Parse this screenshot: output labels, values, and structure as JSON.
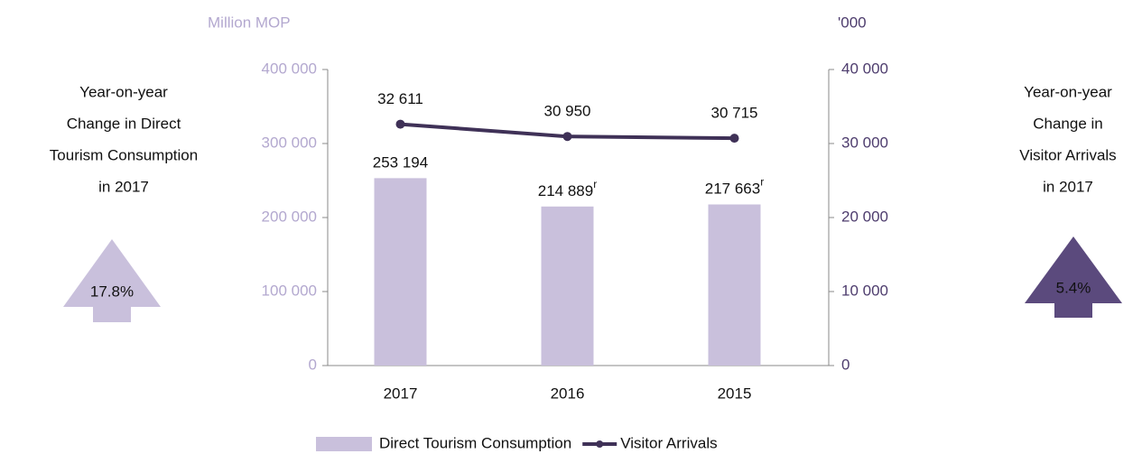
{
  "chart_data": {
    "type": "combo",
    "categories": [
      "2017",
      "2016",
      "2015"
    ],
    "y_label": "Million MOP",
    "y2_label": "'000",
    "ylim": [
      0,
      400000
    ],
    "yticks": [
      0,
      {
        "value": 100000,
        "label": "100 000"
      },
      {
        "value": 200000,
        "label": "200 000"
      },
      {
        "value": 300000,
        "label": "300 000"
      },
      {
        "value": 400000,
        "label": "400 000"
      }
    ],
    "y2lim": [
      0,
      40000
    ],
    "y2ticks": [
      0,
      {
        "value": 10000,
        "label": "10 000"
      },
      {
        "value": 20000,
        "label": "20 000"
      },
      {
        "value": 30000,
        "label": "30 000"
      },
      {
        "value": 40000,
        "label": "40 000"
      }
    ],
    "series": [
      {
        "name": "Direct Tourism Consumption",
        "type": "bar",
        "color": "#c9c0dc",
        "values": [
          253194,
          214889,
          217663
        ],
        "value_labels": [
          "253 194",
          "214 889",
          "217 663"
        ],
        "value_label_notes": [
          null,
          "r",
          "r"
        ]
      },
      {
        "name": "Visitor Arrivals",
        "type": "line",
        "axis": "y2",
        "color": "#3f3157",
        "values": [
          32611,
          30950,
          30715
        ],
        "value_labels": [
          "32 611",
          "30 950",
          "30 715"
        ]
      }
    ],
    "legend": "bottom",
    "annotations": [
      {
        "lines": [
          "Year-on-year",
          "Change in Direct",
          "Tourism Consumption",
          "in 2017"
        ],
        "label": "17.8%",
        "color": "#c9c0dc",
        "label_color": "#222222"
      },
      {
        "lines": [
          "Year-on-year",
          "Change in",
          "Visitor Arrivals",
          "in 2017"
        ],
        "label": "5.4%",
        "color": "#5b4a7d",
        "label_color": "#ffffff"
      }
    ]
  }
}
